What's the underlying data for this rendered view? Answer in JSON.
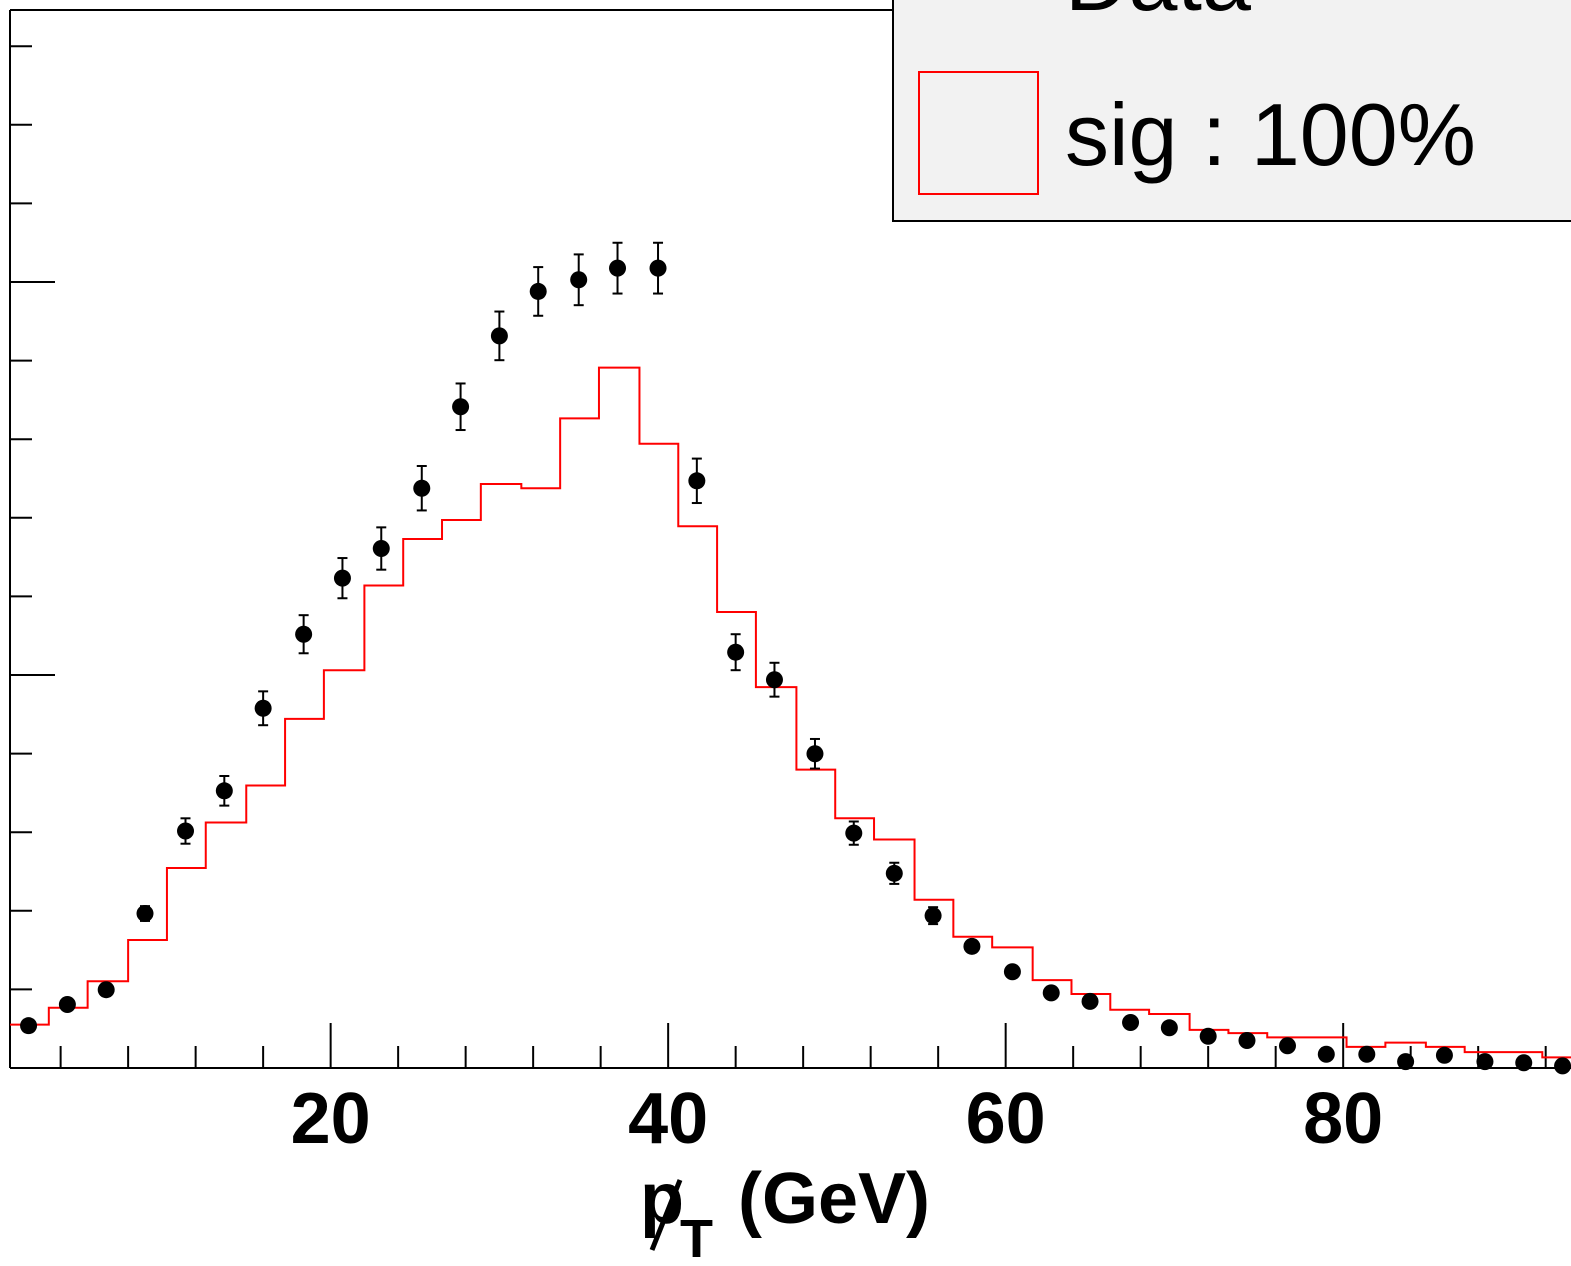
{
  "chart_data": {
    "type": "histogram",
    "xlabel_main": "p",
    "xlabel_sub": "T",
    "xlabel_unit": "(GeV)",
    "x_tick_labels": [
      "20",
      "40",
      "60",
      "80"
    ],
    "x_ticks": [
      20,
      40,
      60,
      80
    ],
    "xlim": [
      1,
      93.5
    ],
    "ylim_fraction_note": "y axis unlabeled in visible crop",
    "ylim": [
      0,
      1
    ],
    "legend": {
      "position": "top-right",
      "entries": [
        {
          "label": "Data",
          "style": "marker"
        },
        {
          "label": "sig : 100%",
          "style": "box",
          "color": "#ff0000"
        }
      ]
    },
    "data_series": {
      "name": "Data",
      "color": "#000000",
      "x": [
        2.1,
        4.4,
        6.7,
        9.0,
        11.4,
        13.7,
        16.0,
        18.4,
        20.7,
        23.0,
        25.4,
        27.7,
        30.0,
        32.3,
        34.7,
        37.0,
        39.4,
        41.7,
        44.0,
        46.3,
        48.7,
        51.0,
        53.4,
        55.7,
        58.0,
        60.4,
        62.7,
        65.0,
        67.4,
        69.7,
        72.0,
        74.3,
        76.7,
        79.0,
        81.4,
        83.7,
        86.0,
        88.4,
        90.7,
        93.0
      ],
      "y": [
        0.04,
        0.06,
        0.074,
        0.146,
        0.224,
        0.262,
        0.34,
        0.41,
        0.463,
        0.491,
        0.548,
        0.625,
        0.692,
        0.734,
        0.745,
        0.756,
        0.756,
        0.555,
        0.393,
        0.367,
        0.297,
        0.222,
        0.184,
        0.144,
        0.115,
        0.091,
        0.071,
        0.063,
        0.043,
        0.038,
        0.03,
        0.026,
        0.021,
        0.013,
        0.013,
        0.006,
        0.012,
        0.006,
        0.005,
        0.002
      ],
      "err": [
        0,
        0,
        0,
        0.007,
        0.012,
        0.014,
        0.016,
        0.018,
        0.019,
        0.02,
        0.021,
        0.022,
        0.023,
        0.023,
        0.024,
        0.024,
        0.024,
        0.021,
        0.017,
        0.016,
        0.014,
        0.011,
        0.01,
        0.008,
        0,
        0,
        0,
        0,
        0,
        0,
        0,
        0,
        0,
        0,
        0,
        0,
        0,
        0,
        0,
        0
      ]
    },
    "signal_series": {
      "name": "sig : 100%",
      "color": "#ff0000",
      "bin_edges": [
        1,
        3.3,
        5.6,
        8.0,
        10.3,
        12.6,
        15.0,
        17.3,
        19.6,
        22.0,
        24.3,
        26.6,
        28.9,
        31.3,
        33.6,
        35.9,
        38.3,
        40.6,
        42.9,
        45.2,
        47.6,
        49.9,
        52.2,
        54.6,
        56.9,
        59.2,
        61.6,
        63.9,
        66.2,
        68.5,
        70.9,
        73.2,
        75.5,
        77.9,
        80.2,
        82.5,
        84.9,
        87.2,
        89.5,
        91.8,
        93.5
      ],
      "values": [
        0.041,
        0.057,
        0.082,
        0.121,
        0.189,
        0.232,
        0.267,
        0.33,
        0.376,
        0.456,
        0.5,
        0.518,
        0.552,
        0.548,
        0.614,
        0.662,
        0.59,
        0.512,
        0.431,
        0.36,
        0.282,
        0.236,
        0.216,
        0.159,
        0.124,
        0.114,
        0.083,
        0.07,
        0.055,
        0.051,
        0.036,
        0.033,
        0.029,
        0.029,
        0.02,
        0.024,
        0.02,
        0.015,
        0.015,
        0.01
      ]
    }
  }
}
